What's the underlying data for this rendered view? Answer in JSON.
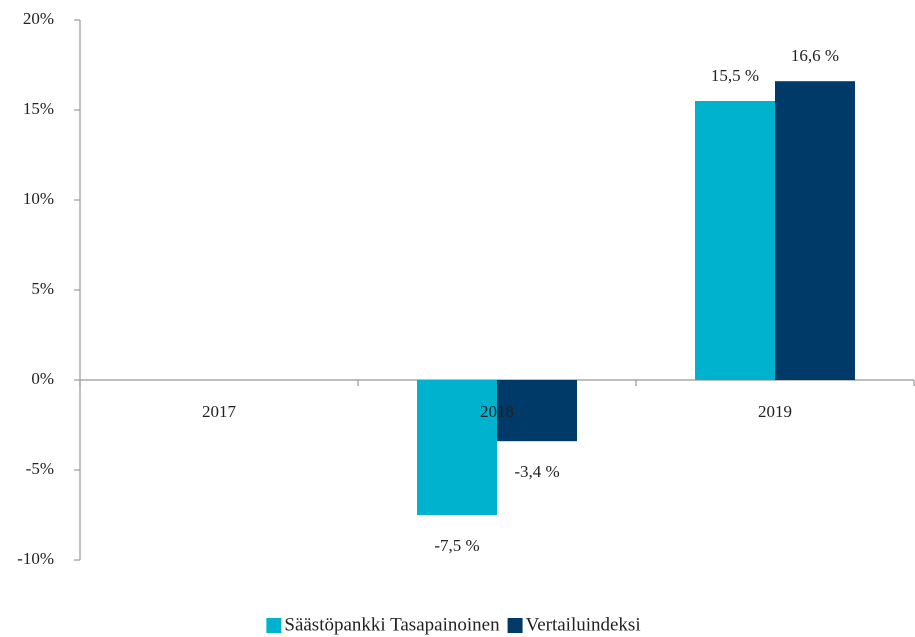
{
  "chart_data": {
    "type": "bar",
    "categories": [
      "2017",
      "2018",
      "2019"
    ],
    "series": [
      {
        "name": "Säästöpankki Tasapainoinen",
        "color": "#00b2cd",
        "values": [
          null,
          -7.5,
          15.5
        ],
        "value_labels": [
          null,
          "-7,5 %",
          "15,5 %"
        ]
      },
      {
        "name": "Vertailuindeksi",
        "color": "#003a68",
        "values": [
          null,
          -3.4,
          16.6
        ],
        "value_labels": [
          null,
          "-3,4 %",
          "16,6 %"
        ]
      }
    ],
    "ylim": [
      -10,
      20
    ],
    "yticks": [
      {
        "value": -10,
        "label": "-10%"
      },
      {
        "value": -5,
        "label": "-5%"
      },
      {
        "value": 0,
        "label": "0%"
      },
      {
        "value": 5,
        "label": "5%"
      },
      {
        "value": 10,
        "label": "10%"
      },
      {
        "value": 15,
        "label": "15%"
      },
      {
        "value": 20,
        "label": "20%"
      }
    ],
    "legend": "bottom"
  }
}
